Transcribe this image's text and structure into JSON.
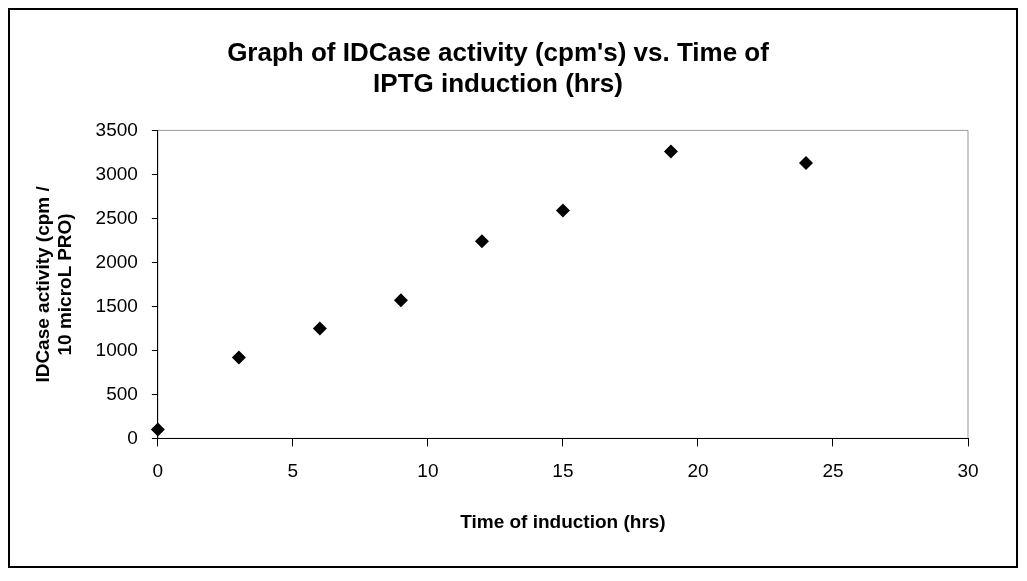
{
  "chart_data": {
    "type": "scatter",
    "title": "Graph of IDCase activity (cpm's) vs. Time of IPTG induction (hrs)",
    "xlabel": "Time of induction (hrs)",
    "ylabel": "IDCase activity (cpm / 10 microL PRO)",
    "x": [
      0,
      3,
      6,
      9,
      12,
      15,
      19,
      24
    ],
    "values": [
      100,
      920,
      1250,
      1570,
      2240,
      2590,
      3260,
      3130
    ],
    "color": "#000000",
    "marker": "diamond",
    "xlim": [
      0,
      30
    ],
    "xticks": [
      0,
      5,
      10,
      15,
      20,
      25,
      30
    ],
    "ylim": [
      0,
      3500
    ],
    "yticks": [
      0,
      500,
      1000,
      1500,
      2000,
      2500,
      3000,
      3500
    ],
    "grid": false,
    "legend": false
  }
}
